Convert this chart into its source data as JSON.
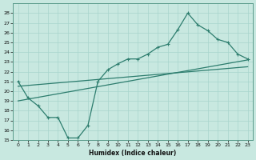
{
  "xlabel": "Humidex (Indice chaleur)",
  "bg_color": "#c8e8e0",
  "line_color": "#2d7d6e",
  "grid_color": "#a8d4cc",
  "xlim": [
    -0.5,
    23.5
  ],
  "ylim": [
    15,
    29
  ],
  "xticks": [
    0,
    1,
    2,
    3,
    4,
    5,
    6,
    7,
    8,
    9,
    10,
    11,
    12,
    13,
    14,
    15,
    16,
    17,
    18,
    19,
    20,
    21,
    22,
    23
  ],
  "yticks": [
    15,
    16,
    17,
    18,
    19,
    20,
    21,
    22,
    23,
    24,
    25,
    26,
    27,
    28
  ],
  "jagged_x": [
    0,
    1,
    2,
    3,
    4,
    5,
    6,
    7,
    8,
    9,
    10,
    11,
    12,
    13,
    14,
    15,
    16,
    17,
    18,
    19,
    20,
    21,
    22,
    23
  ],
  "jagged_y": [
    21.0,
    19.3,
    18.5,
    17.3,
    17.3,
    15.2,
    15.2,
    16.5,
    21.0,
    22.2,
    22.8,
    23.3,
    23.3,
    23.8,
    24.5,
    24.8,
    26.3,
    28.0,
    26.8,
    26.2,
    25.3,
    25.0,
    23.8,
    23.3
  ],
  "trend1_x": [
    0,
    23
  ],
  "trend1_y": [
    20.5,
    22.5
  ],
  "trend2_x": [
    0,
    23
  ],
  "trend2_y": [
    19.0,
    23.2
  ],
  "marker_size": 2.5,
  "line_width": 0.9
}
